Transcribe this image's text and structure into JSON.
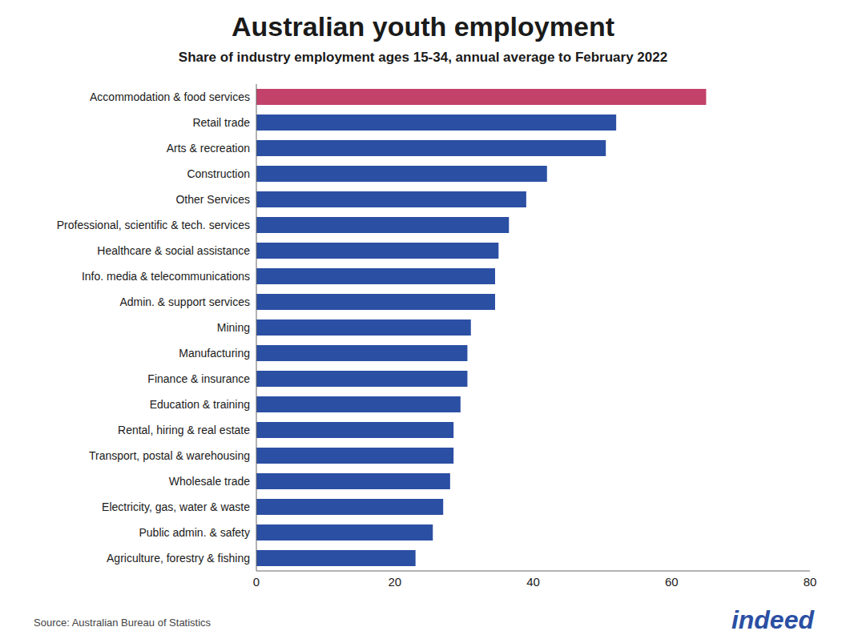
{
  "chart_data": {
    "type": "bar",
    "title": "Australian youth employment",
    "subtitle": "Share of industry employment ages 15-34, annual average to February 2022",
    "annotations": [
      "Source: Australian Bureau of Statistics",
      "indeed"
    ],
    "orientation": "horizontal",
    "categories": [
      "Agriculture, forestry & fishing",
      "Public admin. & safety",
      "Electricity, gas, water & waste",
      "Wholesale trade",
      "Transport, postal & warehousing",
      "Rental, hiring & real estate",
      "Education & training",
      "Finance & insurance",
      "Manufacturing",
      "Mining",
      "Admin. & support services",
      "Info. media & telecommunications",
      "Healthcare & social assistance",
      "Professional, scientific & tech. services",
      "Other Services",
      "Construction",
      "Arts & recreation",
      "Retail trade",
      "Accommodation & food services"
    ],
    "values": [
      23.0,
      25.5,
      27.0,
      28.0,
      28.5,
      28.5,
      29.5,
      30.5,
      30.5,
      31.0,
      34.5,
      34.5,
      35.0,
      36.5,
      39.0,
      42.0,
      50.5,
      52.0,
      65.0
    ],
    "colors": [
      "#2b4fa3",
      "#2b4fa3",
      "#2b4fa3",
      "#2b4fa3",
      "#2b4fa3",
      "#2b4fa3",
      "#2b4fa3",
      "#2b4fa3",
      "#2b4fa3",
      "#2b4fa3",
      "#2b4fa3",
      "#2b4fa3",
      "#2b4fa3",
      "#2b4fa3",
      "#2b4fa3",
      "#2b4fa3",
      "#2b4fa3",
      "#2b4fa3",
      "#c2426a"
    ],
    "xlim": [
      0,
      80
    ],
    "xticks": [
      0,
      20,
      40,
      60,
      80
    ],
    "grid": false
  }
}
